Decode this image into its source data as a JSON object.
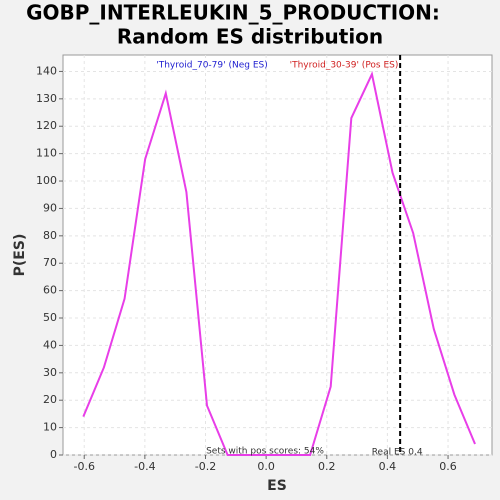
{
  "chart_data": {
    "type": "line",
    "title": [
      "GOBP_INTERLEUKIN_5_PRODUCTION:",
      "Random ES distribution"
    ],
    "x_label": "ES",
    "y_label": "P(ES)",
    "x": [
      -0.603,
      -0.535,
      -0.467,
      -0.399,
      -0.331,
      -0.263,
      -0.195,
      -0.127,
      -0.059,
      0.009,
      0.077,
      0.145,
      0.213,
      0.281,
      0.349,
      0.417,
      0.485,
      0.553,
      0.621,
      0.689
    ],
    "values": [
      14,
      32,
      57,
      108,
      132,
      96,
      18,
      0,
      0,
      0,
      0,
      0,
      25,
      123,
      139,
      103,
      81,
      46,
      22,
      4
    ],
    "color": "#e83ee8",
    "xlim": [
      -0.67,
      0.745
    ],
    "ylim": [
      0,
      146
    ],
    "xticks": [
      -0.6,
      -0.4,
      -0.2,
      {
        "value": 0,
        "label": "0.0"
      },
      0.2,
      0.4,
      0.6
    ],
    "yticks": [
      0,
      10,
      20,
      30,
      40,
      50,
      60,
      70,
      80,
      90,
      100,
      110,
      120,
      130,
      140
    ],
    "grid": true,
    "legend": [
      {
        "text": "'Thyroid_70-79' (Neg ES)",
        "color": "#2020d0"
      },
      {
        "text": "'Thyroid_30-39' (Pos ES)",
        "color": "#d02020"
      }
    ],
    "annotation": "Sets with pos scores: 54%",
    "ref_line": {
      "x": 0.442,
      "label": "Real ES 0.4"
    }
  }
}
